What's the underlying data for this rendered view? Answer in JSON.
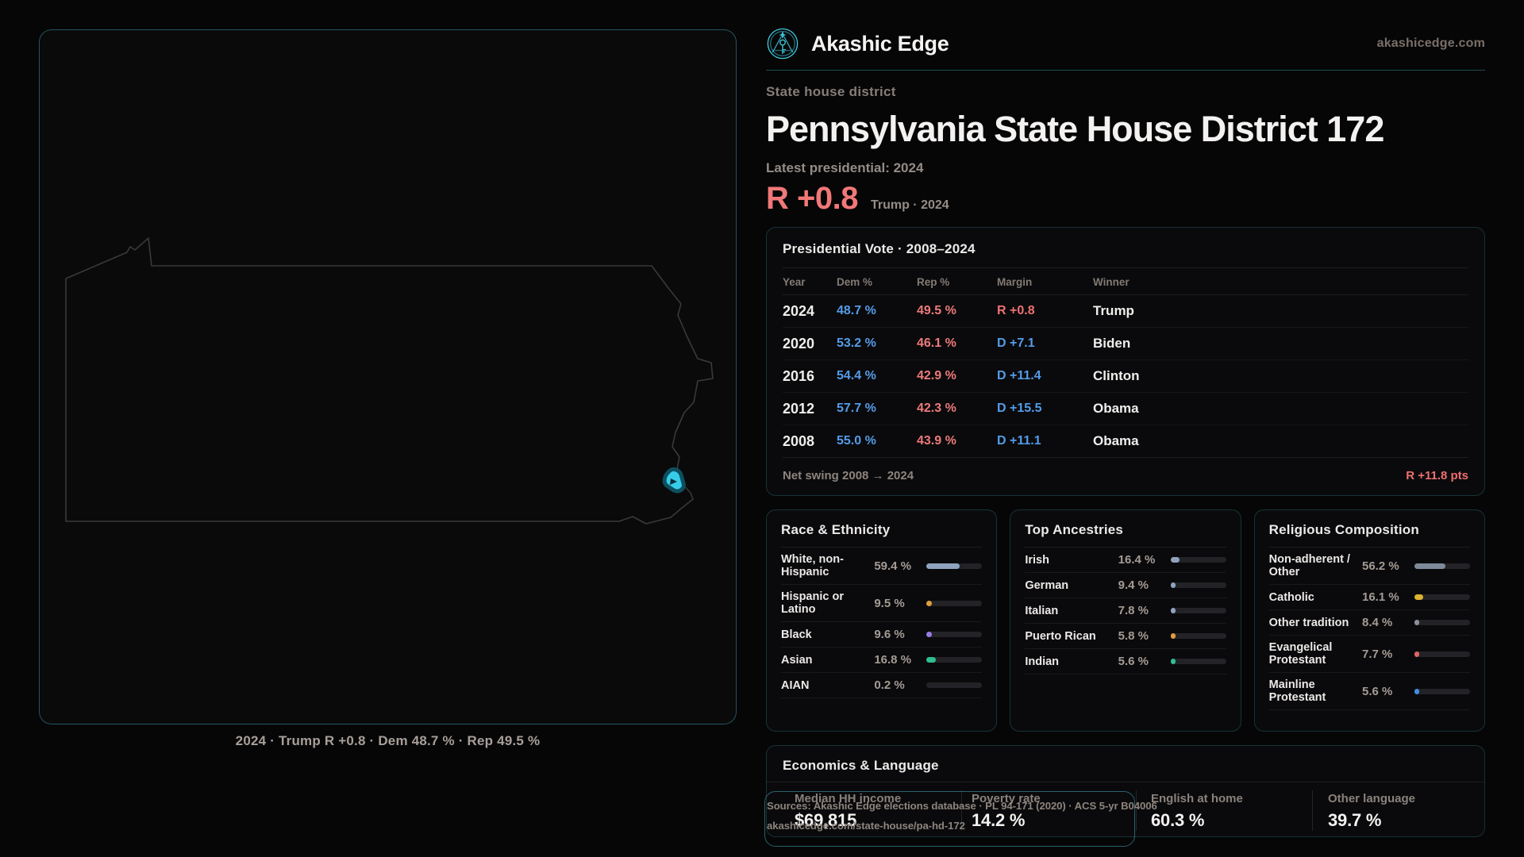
{
  "brand": {
    "name": "Akashic Edge",
    "domain": "akashicedge.com"
  },
  "header": {
    "eyebrow": "State house district",
    "title": "Pennsylvania State House District 172",
    "latest_label": "Latest presidential: 2024",
    "lead_margin": "R +0.8",
    "lead_context": "Trump · 2024"
  },
  "map": {
    "caption": "2024 · Trump R +0.8 · Dem 48.7 % · Rep 49.5 %",
    "marker_color": "#35cdea"
  },
  "accent": {
    "teal": "#4dd0e1",
    "dem_blue": "#549ce8",
    "rep_red": "#ef7272"
  },
  "pres_table": {
    "title": "Presidential Vote · 2008–2024",
    "columns": [
      "Year",
      "Dem %",
      "Rep %",
      "Margin",
      "Winner"
    ],
    "rows": [
      {
        "year": "2024",
        "dem": "48.7 %",
        "rep": "49.5 %",
        "margin": "R +0.8",
        "margin_party": "R",
        "winner": "Trump"
      },
      {
        "year": "2020",
        "dem": "53.2 %",
        "rep": "46.1 %",
        "margin": "D +7.1",
        "margin_party": "D",
        "winner": "Biden"
      },
      {
        "year": "2016",
        "dem": "54.4 %",
        "rep": "42.9 %",
        "margin": "D +11.4",
        "margin_party": "D",
        "winner": "Clinton"
      },
      {
        "year": "2012",
        "dem": "57.7 %",
        "rep": "42.3 %",
        "margin": "D +15.5",
        "margin_party": "D",
        "winner": "Obama"
      },
      {
        "year": "2008",
        "dem": "55.0 %",
        "rep": "43.9 %",
        "margin": "D +11.1",
        "margin_party": "D",
        "winner": "Obama"
      }
    ],
    "net_swing_label": "Net swing 2008 → 2024",
    "net_swing_value": "R +11.8 pts"
  },
  "panels": [
    {
      "title": "Race & Ethnicity",
      "rows": [
        {
          "label": "White, non-Hispanic",
          "value": "59.4 %",
          "pct": 59.4,
          "color": "#8fa3bf"
        },
        {
          "label": "Hispanic or Latino",
          "value": "9.5 %",
          "pct": 9.5,
          "color": "#df9f3a"
        },
        {
          "label": "Black",
          "value": "9.6 %",
          "pct": 9.6,
          "color": "#977be4"
        },
        {
          "label": "Asian",
          "value": "16.8 %",
          "pct": 16.8,
          "color": "#2fbe8f"
        },
        {
          "label": "AIAN",
          "value": "0.2 %",
          "pct": 0.2,
          "color": "#8fa3bf"
        }
      ]
    },
    {
      "title": "Top Ancestries",
      "rows": [
        {
          "label": "Irish",
          "value": "16.4 %",
          "pct": 16.4,
          "color": "#8fa3bf"
        },
        {
          "label": "German",
          "value": "9.4 %",
          "pct": 9.4,
          "color": "#8fa3bf"
        },
        {
          "label": "Italian",
          "value": "7.8 %",
          "pct": 7.8,
          "color": "#8fa3bf"
        },
        {
          "label": "Puerto Rican",
          "value": "5.8 %",
          "pct": 5.8,
          "color": "#df9f3a"
        },
        {
          "label": "Indian",
          "value": "5.6 %",
          "pct": 5.6,
          "color": "#2fbe8f"
        }
      ]
    },
    {
      "title": "Religious Composition",
      "rows": [
        {
          "label": "Non-adherent / Other",
          "value": "56.2 %",
          "pct": 56.2,
          "color": "#7e8a9a"
        },
        {
          "label": "Catholic",
          "value": "16.1 %",
          "pct": 16.1,
          "color": "#ddb32f"
        },
        {
          "label": "Other tradition",
          "value": "8.4 %",
          "pct": 8.4,
          "color": "#8a9099"
        },
        {
          "label": "Evangelical Protestant",
          "value": "7.7 %",
          "pct": 7.7,
          "color": "#e06565"
        },
        {
          "label": "Mainline Protestant",
          "value": "5.6 %",
          "pct": 5.6,
          "color": "#3d8fe0"
        }
      ]
    }
  ],
  "economics": {
    "title": "Economics & Language",
    "stats": [
      {
        "label": "Median HH income",
        "value": "$69,815"
      },
      {
        "label": "Poverty rate",
        "value": "14.2 %"
      },
      {
        "label": "English at home",
        "value": "60.3 %"
      },
      {
        "label": "Other language",
        "value": "39.7 %"
      }
    ]
  },
  "sources": {
    "line1": "Sources: Akashic Edge elections database · PL 94-171 (2020) · ACS 5-yr B04006",
    "line2": "akashicedge.com/state-house/pa-hd-172"
  }
}
